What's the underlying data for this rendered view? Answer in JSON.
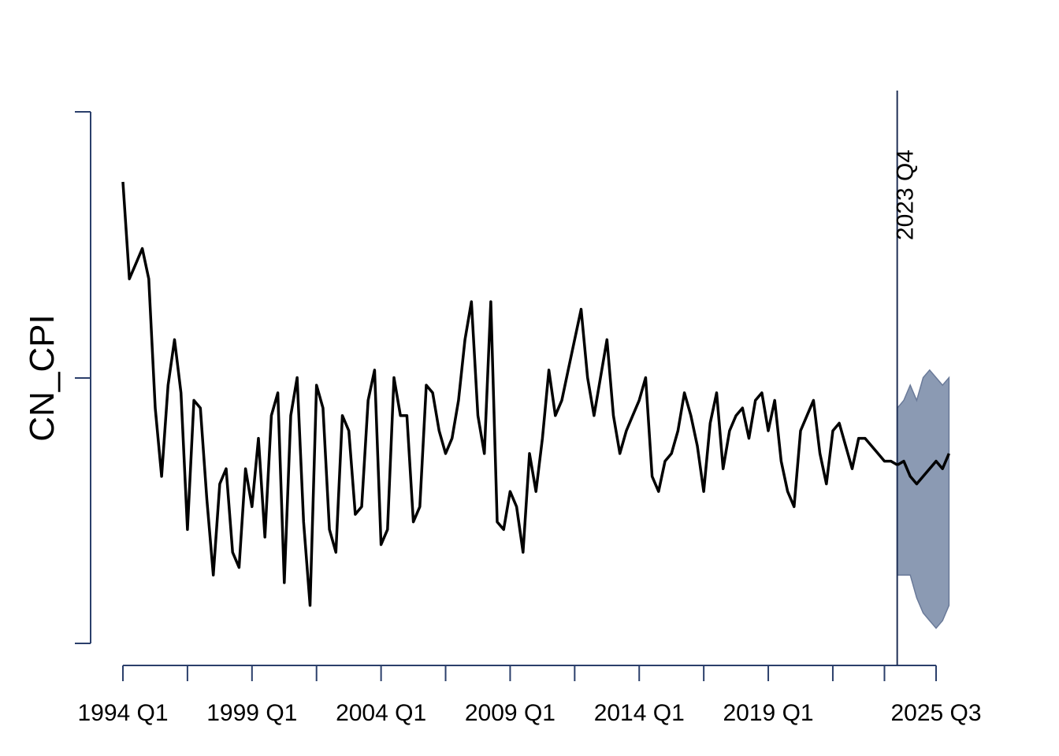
{
  "chart_data": {
    "type": "line",
    "title": "",
    "xlabel": "",
    "ylabel": "CN_CPI",
    "x_start": "1994 Q1",
    "x_end": "2025 Q3",
    "x_tick_labels": [
      {
        "label": "1994 Q1",
        "q": 0
      },
      {
        "label": "1999 Q1",
        "q": 20
      },
      {
        "label": "2004 Q1",
        "q": 40
      },
      {
        "label": "2009 Q1",
        "q": 60
      },
      {
        "label": "2014 Q1",
        "q": 80
      },
      {
        "label": "2019 Q1",
        "q": 100
      },
      {
        "label": "2025 Q3",
        "q": 126
      }
    ],
    "x_minor_ticks": [
      10,
      30,
      50,
      70,
      90,
      110,
      118
    ],
    "vertical_marker": {
      "label": "2023 Q4",
      "q": 119
    },
    "grid": false,
    "legend": "none",
    "colors": {
      "line": "#000000",
      "axis": "#2b3f6b",
      "band_fill": "#8b9ab3",
      "band_stroke": "#6a7a99"
    },
    "observed": [
      0.077,
      -1.2,
      -1.0,
      -0.8,
      -1.2,
      -2.9,
      -3.8,
      -2.6,
      -2.0,
      -2.7,
      -4.5,
      -2.8,
      -2.9,
      -4.1,
      -5.1,
      -3.9,
      -3.7,
      -4.8,
      -5.0,
      -3.7,
      -4.2,
      -3.3,
      -4.6,
      -3.0,
      -2.7,
      -5.2,
      -3.0,
      -2.5,
      -4.4,
      -5.5,
      -2.6,
      -2.9,
      -4.5,
      -4.8,
      -3.0,
      -3.2,
      -4.3,
      -4.2,
      -2.8,
      -2.4,
      -4.7,
      -4.5,
      -2.5,
      -3.0,
      -3.0,
      -4.4,
      -4.2,
      -2.6,
      -2.7,
      -3.2,
      -3.5,
      -3.3,
      -2.8,
      -2.0,
      -1.5,
      -3.0,
      -3.5,
      -1.5,
      -4.4,
      -4.5,
      -4.0,
      -4.2,
      -4.8,
      -3.5,
      -4.0,
      -3.3,
      -2.4,
      -3.0,
      -2.8,
      -2.4,
      -2.0,
      -1.6,
      -2.5,
      -3.0,
      -2.5,
      -2.0,
      -3.0,
      -3.5,
      -3.2,
      -3.0,
      -2.8,
      -2.5,
      -3.8,
      -4.0,
      -3.6,
      -3.5,
      -3.2,
      -2.7,
      -3.0,
      -3.4,
      -4.0,
      -3.1,
      -2.7,
      -3.7,
      -3.2,
      -3.0,
      -2.9,
      -3.3,
      -2.8,
      -2.7,
      -3.2,
      -2.8,
      -3.6,
      -4.0,
      -4.2,
      -3.2,
      -3.0,
      -2.8,
      -3.5,
      -3.9,
      -3.2,
      -3.1,
      -3.4,
      -3.7,
      -3.3,
      -3.3,
      -3.4,
      -3.5,
      -3.6,
      -3.6,
      -3.65
    ],
    "forecast": {
      "mean": [
        -3.6,
        -3.8,
        -3.9,
        -3.8,
        -3.7,
        -3.6,
        -3.7,
        -3.5
      ],
      "upper": [
        -2.8,
        -2.6,
        -2.8,
        -2.5,
        -2.4,
        -2.5,
        -2.6,
        -2.5
      ],
      "lower": [
        -5.1,
        -5.1,
        -5.4,
        -5.6,
        -5.7,
        -5.8,
        -5.7,
        -5.5
      ]
    }
  }
}
